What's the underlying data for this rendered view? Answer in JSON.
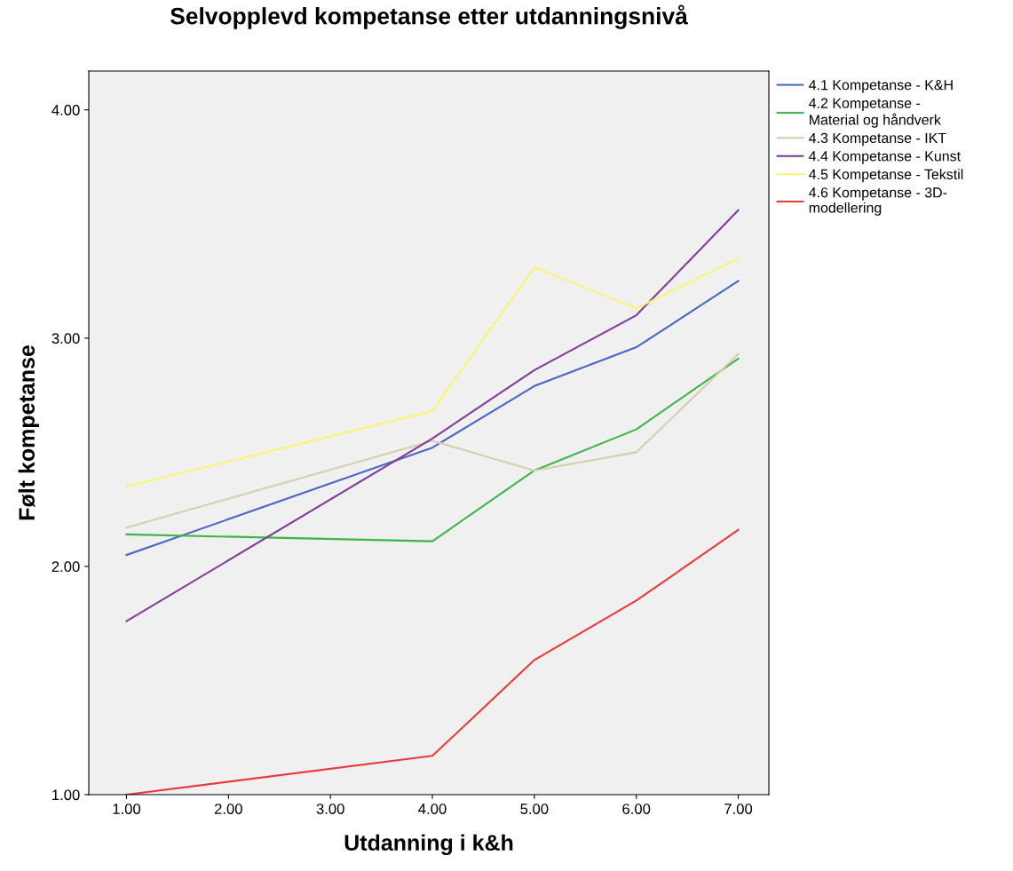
{
  "chart_data": {
    "type": "line",
    "title": "Selvopplevd kompetanse etter utdanningsnivå",
    "xlabel": "Utdanning i k&h",
    "ylabel": "Følt kompetanse",
    "x": [
      1,
      4,
      5,
      6,
      7
    ],
    "xlim": [
      0.63,
      7.3
    ],
    "xticks": [
      {
        "value": 1,
        "label": "1.00"
      },
      {
        "value": 2,
        "label": "2.00"
      },
      {
        "value": 3,
        "label": "3.00"
      },
      {
        "value": 4,
        "label": "4.00"
      },
      {
        "value": 5,
        "label": "5.00"
      },
      {
        "value": 6,
        "label": "6.00"
      },
      {
        "value": 7,
        "label": "7.00"
      }
    ],
    "ylim": [
      1.0,
      4.17
    ],
    "yticks": [
      {
        "value": 1,
        "label": "1.00"
      },
      {
        "value": 2,
        "label": "2.00"
      },
      {
        "value": 3,
        "label": "3.00"
      },
      {
        "value": 4,
        "label": "4.00"
      }
    ],
    "series": [
      {
        "name": "4.1 Kompetanse - K&H",
        "color": "#4a66c4",
        "values": [
          2.05,
          2.52,
          2.79,
          2.96,
          3.25
        ]
      },
      {
        "name": "4.2 Kompetanse -\nMaterial og håndverk",
        "color": "#3db54a",
        "values": [
          2.14,
          2.11,
          2.42,
          2.6,
          2.91
        ]
      },
      {
        "name": "4.3 Kompetanse - IKT",
        "color": "#d4cfac",
        "values": [
          2.17,
          2.55,
          2.42,
          2.5,
          2.93
        ]
      },
      {
        "name": "4.4 Kompetanse - Kunst",
        "color": "#7f3d99",
        "values": [
          1.76,
          2.56,
          2.86,
          3.1,
          3.56
        ]
      },
      {
        "name": "4.5 Kompetanse - Tekstil",
        "color": "#f8f56e",
        "values": [
          2.35,
          2.68,
          3.31,
          3.13,
          3.35
        ]
      },
      {
        "name": "4.6 Kompetanse - 3D-\nmodellering",
        "color": "#e8393d",
        "values": [
          1.0,
          1.17,
          1.59,
          1.85,
          2.16
        ]
      }
    ],
    "grid": false,
    "legend": "top right",
    "marker": "none",
    "line_style": "solid"
  }
}
